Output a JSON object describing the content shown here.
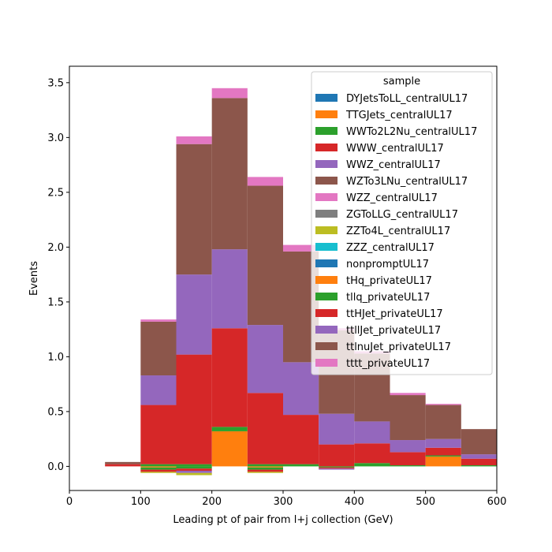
{
  "chart_data": {
    "type": "bar",
    "stacked": true,
    "histogram": true,
    "title": "",
    "xlabel": "Leading pt of pair from l+j collection (GeV)",
    "ylabel": "Events",
    "xlim": [
      0,
      600
    ],
    "ylim": [
      -0.22,
      3.65
    ],
    "grid": false,
    "legend": {
      "title": "sample",
      "position": "top-right"
    },
    "x_ticks": [
      0,
      100,
      200,
      300,
      400,
      500,
      600
    ],
    "y_ticks": [
      0.0,
      0.5,
      1.0,
      1.5,
      2.0,
      2.5,
      3.0,
      3.5
    ],
    "bin_edges": [
      50,
      100,
      150,
      200,
      250,
      300,
      350,
      400,
      450,
      500,
      550,
      600
    ],
    "series": [
      {
        "name": "DYJetsToLL_centralUL17",
        "color": "#1f77b4",
        "values": [
          0,
          0,
          0,
          0,
          0,
          0,
          0,
          0,
          0,
          0,
          0
        ]
      },
      {
        "name": "TTGJets_centralUL17",
        "color": "#ff7f0e",
        "values": [
          0,
          -0.01,
          0,
          0.32,
          -0.01,
          0,
          0,
          0,
          0,
          0.09,
          0
        ]
      },
      {
        "name": "WWTo2L2Nu_centralUL17",
        "color": "#2ca02c",
        "values": [
          0,
          -0.02,
          -0.02,
          0.04,
          -0.02,
          0.02,
          -0.01,
          0.03,
          0.01,
          0.01,
          0.01
        ]
      },
      {
        "name": "WWW_centralUL17",
        "color": "#d62728",
        "values": [
          0,
          -0.02,
          -0.02,
          0,
          -0.02,
          0,
          -0.01,
          0,
          0,
          0,
          0
        ]
      },
      {
        "name": "WWZ_centralUL17",
        "color": "#9467bd",
        "values": [
          0,
          0,
          -0.02,
          0,
          0,
          0,
          -0.01,
          0,
          0,
          0,
          0
        ]
      },
      {
        "name": "WZTo3LNu_centralUL17",
        "color": "#8c564b",
        "values": [
          0,
          0,
          0,
          0,
          0,
          0,
          0,
          0,
          0,
          0,
          0
        ]
      },
      {
        "name": "WZZ_centralUL17",
        "color": "#e377c2",
        "values": [
          0,
          0,
          0,
          0,
          0,
          0,
          0,
          0,
          0,
          0,
          0
        ]
      },
      {
        "name": "ZGToLLG_centralUL17",
        "color": "#7f7f7f",
        "values": [
          0,
          0,
          0,
          0,
          0,
          0,
          0,
          0,
          0,
          0,
          0
        ]
      },
      {
        "name": "ZZTo4L_centralUL17",
        "color": "#bcbd22",
        "values": [
          0,
          -0.01,
          -0.02,
          0,
          -0.01,
          0,
          0,
          0,
          0,
          0,
          0
        ]
      },
      {
        "name": "ZZZ_centralUL17",
        "color": "#17becf",
        "values": [
          0,
          0,
          0,
          0,
          0,
          0,
          0,
          0,
          0,
          0,
          0
        ]
      },
      {
        "name": "nonpromptUL17",
        "color": "#1f77b4",
        "values": [
          0,
          0,
          0,
          0,
          0,
          0,
          0,
          0,
          0,
          0,
          0
        ]
      },
      {
        "name": "tHq_privateUL17",
        "color": "#ff7f0e",
        "values": [
          0,
          0,
          0,
          0,
          0,
          0,
          0,
          0,
          0,
          0,
          0
        ]
      },
      {
        "name": "tllq_privateUL17",
        "color": "#2ca02c",
        "values": [
          0,
          0.02,
          0.02,
          0,
          0.02,
          0,
          0,
          0,
          0,
          0,
          0
        ]
      },
      {
        "name": "ttHJet_privateUL17",
        "color": "#d62728",
        "values": [
          0.02,
          0.54,
          1.0,
          0.9,
          0.65,
          0.45,
          0.2,
          0.18,
          0.12,
          0.07,
          0.06
        ]
      },
      {
        "name": "ttllJet_privateUL17",
        "color": "#9467bd",
        "values": [
          0,
          0.27,
          0.73,
          0.72,
          0.62,
          0.48,
          0.28,
          0.2,
          0.11,
          0.08,
          0.04
        ]
      },
      {
        "name": "ttlnuJet_privateUL17",
        "color": "#8c564b",
        "values": [
          0.02,
          0.49,
          1.19,
          1.38,
          1.27,
          1.01,
          0.76,
          0.62,
          0.41,
          0.31,
          0.23
        ]
      },
      {
        "name": "tttt_privateUL17",
        "color": "#e377c2",
        "values": [
          0,
          0.02,
          0.07,
          0.09,
          0.08,
          0.06,
          0.02,
          0.02,
          0.02,
          0.01,
          0
        ]
      }
    ]
  }
}
